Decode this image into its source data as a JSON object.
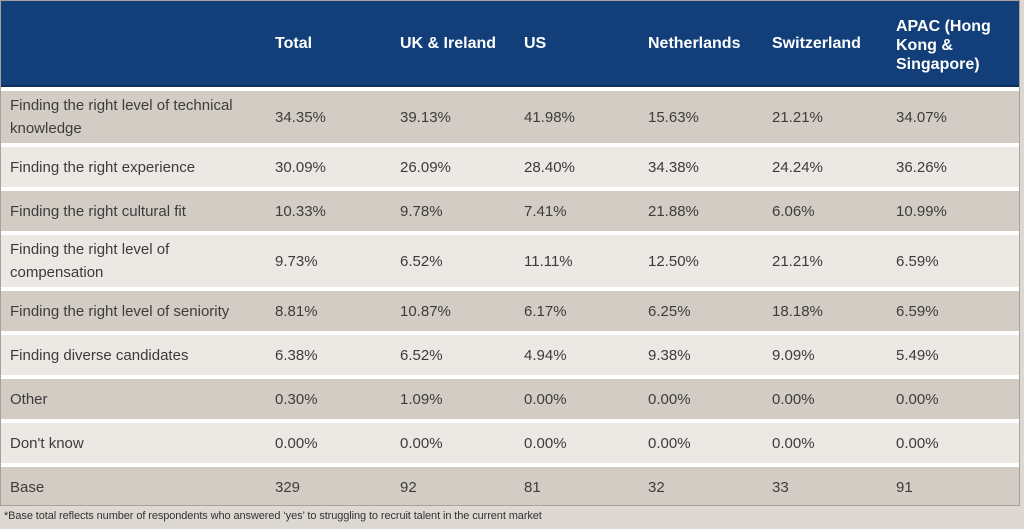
{
  "chart_data": {
    "type": "table",
    "columns": [
      "",
      "Total",
      "UK & Ireland",
      "US",
      "Netherlands",
      "Switzerland",
      "APAC (Hong Kong & Singapore)"
    ],
    "rows": [
      {
        "label": "Finding the right level of technical knowledge",
        "values": [
          "34.35%",
          "39.13%",
          "41.98%",
          "15.63%",
          "21.21%",
          "34.07%"
        ]
      },
      {
        "label": "Finding the right experience",
        "values": [
          "30.09%",
          "26.09%",
          "28.40%",
          "34.38%",
          "24.24%",
          "36.26%"
        ]
      },
      {
        "label": "Finding the right cultural fit",
        "values": [
          "10.33%",
          "9.78%",
          "7.41%",
          "21.88%",
          "6.06%",
          "10.99%"
        ]
      },
      {
        "label": "Finding the right level of compensation",
        "values": [
          "9.73%",
          "6.52%",
          "11.11%",
          "12.50%",
          "21.21%",
          "6.59%"
        ]
      },
      {
        "label": "Finding the right level of seniority",
        "values": [
          "8.81%",
          "10.87%",
          "6.17%",
          "6.25%",
          "18.18%",
          "6.59%"
        ]
      },
      {
        "label": "Finding diverse candidates",
        "values": [
          "6.38%",
          "6.52%",
          "4.94%",
          "9.38%",
          "9.09%",
          "5.49%"
        ]
      },
      {
        "label": "Other",
        "values": [
          "0.30%",
          "1.09%",
          "0.00%",
          "0.00%",
          "0.00%",
          "0.00%"
        ]
      },
      {
        "label": "Don't know",
        "values": [
          "0.00%",
          "0.00%",
          "0.00%",
          "0.00%",
          "0.00%",
          "0.00%"
        ]
      },
      {
        "label": "Base",
        "values": [
          "329",
          "92",
          "81",
          "32",
          "33",
          "91"
        ]
      }
    ],
    "footnote": "*Base total reflects number of respondents who answered ‘yes’ to struggling to recruit talent in the current market"
  },
  "colors": {
    "header_bg": "#123f7a",
    "header_text": "#ffffff",
    "row_dark": "#d3ccc5",
    "row_light": "#ece8e3",
    "body_text": "#3c3c3c",
    "separator": "#ffffff"
  }
}
